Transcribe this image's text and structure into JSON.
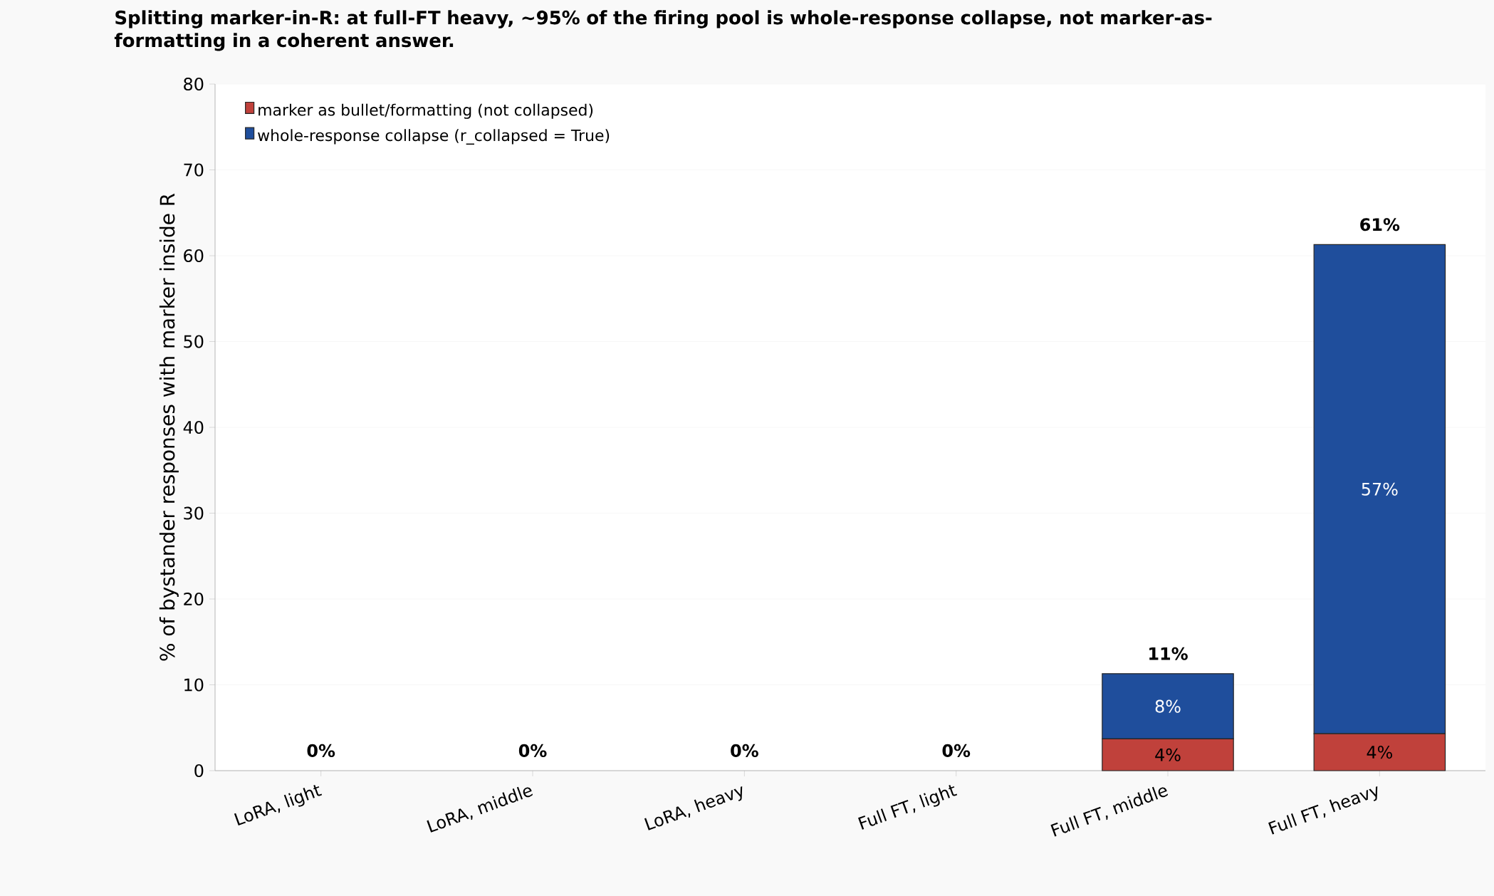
{
  "chart_data": {
    "type": "bar",
    "stacked": true,
    "title": "Splitting marker-in-R: at full-FT heavy, ~95% of the firing pool is whole-response collapse, not marker-as-formatting in a coherent answer.",
    "ylabel": "% of bystander responses with marker inside R",
    "categories": [
      "LoRA, light",
      "LoRA, middle",
      "LoRA, heavy",
      "Full FT, light",
      "Full FT, middle",
      "Full FT, heavy"
    ],
    "series": [
      {
        "name": "marker as bullet/formatting (not collapsed)",
        "color": "#c0413b",
        "values": [
          0,
          0,
          0,
          0,
          3.7,
          4.3
        ],
        "value_labels": [
          null,
          null,
          null,
          null,
          "4%",
          "4%"
        ]
      },
      {
        "name": "whole-response collapse (r_collapsed = True)",
        "color": "#1f4e9c",
        "values": [
          0,
          0,
          0,
          0,
          7.6,
          57.0
        ],
        "value_labels": [
          null,
          null,
          null,
          null,
          "8%",
          "57%"
        ]
      }
    ],
    "totals": [
      "0%",
      "0%",
      "0%",
      "0%",
      "11%",
      "61%"
    ],
    "ylim": [
      0,
      80
    ],
    "yticks": [
      0,
      10,
      20,
      30,
      40,
      50,
      60,
      70,
      80
    ],
    "grid": "y",
    "legend": "top left"
  }
}
